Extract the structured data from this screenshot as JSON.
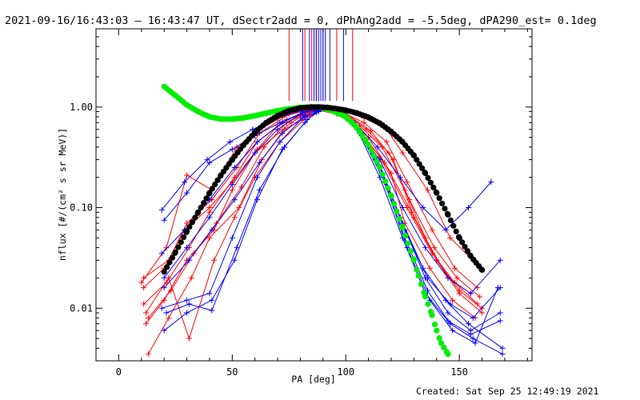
{
  "chart_data": {
    "type": "line",
    "title": "2021-09-16/16:43:03 – 16:43:47 UT, dSectr2add = 0, dPhAng2add = -5.5deg, dPA290_est=  0.1deg",
    "xlabel": "PA [deg]",
    "ylabel": "nflux [#/(cm² s sr MeV)]",
    "xlim": [
      -10,
      182
    ],
    "ylim": [
      0.003,
      6.0
    ],
    "yscale": "log",
    "x_ticks": [
      0,
      50,
      100,
      150
    ],
    "x_tick_labels": [
      "0",
      "50",
      "100",
      "150"
    ],
    "y_ticks": [
      0.01,
      0.1,
      1.0
    ],
    "y_tick_labels": [
      "0.01",
      "0.10",
      "1.00"
    ],
    "grid": false,
    "legend": "none",
    "colors": {
      "red": "#ff0000",
      "blue": "#0000ff",
      "black": "#000000",
      "green": "#00ee00"
    },
    "black_fit": {
      "x": [
        20,
        25,
        30,
        35,
        40,
        45,
        50,
        55,
        60,
        65,
        70,
        75,
        80,
        85,
        88,
        92,
        95,
        100,
        105,
        110,
        115,
        120,
        125,
        130,
        135,
        140,
        145,
        150,
        155,
        160
      ],
      "y": [
        0.023,
        0.036,
        0.058,
        0.09,
        0.14,
        0.21,
        0.3,
        0.42,
        0.56,
        0.7,
        0.82,
        0.92,
        0.98,
        1.0,
        1.0,
        0.99,
        0.97,
        0.93,
        0.87,
        0.79,
        0.69,
        0.57,
        0.45,
        0.33,
        0.22,
        0.14,
        0.085,
        0.05,
        0.033,
        0.024
      ]
    },
    "green_fit": {
      "x": [
        20,
        25,
        30,
        35,
        40,
        45,
        50,
        55,
        60,
        65,
        70,
        75,
        80,
        85,
        88,
        92,
        95,
        100,
        105,
        110,
        115,
        120,
        125,
        130,
        132,
        135,
        138,
        140,
        142,
        145
      ],
      "y": [
        1.6,
        1.3,
        1.05,
        0.9,
        0.8,
        0.76,
        0.76,
        0.78,
        0.82,
        0.87,
        0.92,
        0.96,
        0.99,
        1.0,
        1.0,
        0.95,
        0.9,
        0.8,
        0.62,
        0.42,
        0.25,
        0.13,
        0.063,
        0.03,
        0.021,
        0.013,
        0.0085,
        0.006,
        0.0045,
        0.0035
      ]
    },
    "red_series": [
      {
        "x": [
          11,
          22,
          30,
          41,
          52,
          62,
          75,
          85,
          90,
          98,
          108,
          118,
          127,
          138,
          148,
          158
        ],
        "y": [
          0.02,
          0.03,
          0.07,
          0.12,
          0.25,
          0.55,
          0.85,
          0.95,
          0.98,
          0.9,
          0.7,
          0.45,
          0.18,
          0.06,
          0.025,
          0.016
        ]
      },
      {
        "x": [
          11,
          21,
          31,
          40,
          51,
          61,
          74,
          86,
          91,
          99,
          109,
          119,
          128,
          139,
          149,
          159
        ],
        "y": [
          0.011,
          0.018,
          0.04,
          0.09,
          0.2,
          0.45,
          0.75,
          0.92,
          0.97,
          0.88,
          0.6,
          0.35,
          0.12,
          0.04,
          0.02,
          0.013
        ]
      },
      {
        "x": [
          12,
          20,
          30,
          42,
          50,
          60,
          76,
          84,
          89,
          97,
          107,
          117,
          129,
          140,
          150,
          160
        ],
        "y": [
          0.007,
          0.012,
          0.03,
          0.06,
          0.15,
          0.35,
          0.7,
          0.9,
          0.96,
          0.85,
          0.55,
          0.28,
          0.09,
          0.03,
          0.015,
          0.01
        ]
      },
      {
        "x": [
          13,
          22,
          32,
          40,
          53,
          63,
          73,
          87,
          92,
          100,
          110,
          120,
          126,
          137,
          147,
          157
        ],
        "y": [
          0.0035,
          0.008,
          0.02,
          0.05,
          0.1,
          0.3,
          0.6,
          0.88,
          0.95,
          0.8,
          0.5,
          0.22,
          0.07,
          0.025,
          0.012,
          0.008
        ]
      },
      {
        "x": [
          10,
          21,
          30,
          41,
          52,
          62,
          72,
          85,
          90,
          98,
          108,
          118,
          125,
          136,
          146,
          156
        ],
        "y": [
          0.018,
          0.04,
          0.21,
          0.15,
          0.4,
          0.6,
          0.8,
          0.96,
          0.99,
          0.92,
          0.78,
          0.6,
          0.35,
          0.15,
          0.05,
          0.03
        ]
      },
      {
        "x": [
          12,
          22,
          31,
          42,
          51,
          60,
          71,
          83,
          88,
          96,
          106,
          116,
          126,
          135,
          145,
          155
        ],
        "y": [
          0.009,
          0.02,
          0.005,
          0.03,
          0.08,
          0.2,
          0.45,
          0.8,
          0.93,
          0.85,
          0.65,
          0.4,
          0.15,
          0.05,
          0.02,
          0.014
        ]
      },
      {
        "x": [
          11,
          20,
          29,
          40,
          50,
          61,
          70,
          82,
          89,
          97,
          105,
          115,
          127,
          138,
          148,
          158
        ],
        "y": [
          0.016,
          0.025,
          0.06,
          0.1,
          0.18,
          0.38,
          0.65,
          0.85,
          0.96,
          0.87,
          0.62,
          0.32,
          0.1,
          0.035,
          0.018,
          0.011
        ]
      },
      {
        "x": [
          13,
          23,
          33,
          43,
          54,
          64,
          74,
          84,
          91,
          99,
          111,
          121,
          130,
          140,
          150,
          160
        ],
        "y": [
          0.008,
          0.015,
          0.035,
          0.07,
          0.16,
          0.4,
          0.7,
          0.9,
          0.97,
          0.9,
          0.58,
          0.3,
          0.08,
          0.03,
          0.014,
          0.009
        ]
      }
    ],
    "blue_series": [
      {
        "x": [
          19,
          29,
          39,
          49,
          59,
          70,
          80,
          86,
          90,
          96,
          104,
          114,
          124,
          134,
          144,
          154,
          164
        ],
        "y": [
          0.095,
          0.18,
          0.3,
          0.45,
          0.6,
          0.78,
          0.92,
          0.97,
          0.99,
          0.92,
          0.7,
          0.4,
          0.2,
          0.1,
          0.06,
          0.1,
          0.18
        ]
      },
      {
        "x": [
          20,
          30,
          40,
          50,
          60,
          71,
          81,
          87,
          91,
          97,
          105,
          115,
          125,
          135,
          145,
          155,
          168
        ],
        "y": [
          0.075,
          0.14,
          0.28,
          0.38,
          0.52,
          0.7,
          0.88,
          0.95,
          0.98,
          0.9,
          0.6,
          0.3,
          0.1,
          0.04,
          0.02,
          0.014,
          0.03
        ]
      },
      {
        "x": [
          19,
          29,
          40,
          51,
          61,
          72,
          82,
          88,
          92,
          98,
          106,
          116,
          126,
          136,
          146,
          156,
          168
        ],
        "y": [
          0.035,
          0.06,
          0.12,
          0.25,
          0.45,
          0.7,
          0.9,
          0.97,
          0.96,
          0.88,
          0.55,
          0.22,
          0.06,
          0.02,
          0.011,
          0.008,
          0.016
        ]
      },
      {
        "x": [
          20,
          30,
          40,
          50,
          60,
          70,
          80,
          86,
          90,
          96,
          104,
          114,
          124,
          134,
          144,
          154,
          169
        ],
        "y": [
          0.02,
          0.04,
          0.08,
          0.17,
          0.35,
          0.6,
          0.85,
          0.95,
          0.99,
          0.92,
          0.65,
          0.3,
          0.08,
          0.025,
          0.012,
          0.007,
          0.004
        ]
      },
      {
        "x": [
          20,
          31,
          41,
          51,
          62,
          72,
          82,
          87,
          91,
          97,
          105,
          115,
          125,
          135,
          145,
          155,
          168
        ],
        "y": [
          0.016,
          0.03,
          0.06,
          0.12,
          0.28,
          0.55,
          0.82,
          0.93,
          0.98,
          0.9,
          0.6,
          0.25,
          0.07,
          0.02,
          0.009,
          0.006,
          0.009
        ]
      },
      {
        "x": [
          19,
          30,
          40,
          50,
          61,
          71,
          81,
          88,
          92,
          98,
          106,
          116,
          126,
          136,
          146,
          156,
          169
        ],
        "y": [
          0.01,
          0.012,
          0.014,
          0.05,
          0.2,
          0.45,
          0.78,
          0.92,
          0.97,
          0.88,
          0.58,
          0.22,
          0.05,
          0.015,
          0.007,
          0.005,
          0.0035
        ]
      },
      {
        "x": [
          21,
          31,
          41,
          52,
          62,
          73,
          83,
          88,
          92,
          98,
          107,
          117,
          127,
          137,
          147,
          157,
          167
        ],
        "y": [
          0.009,
          0.011,
          0.0095,
          0.04,
          0.15,
          0.4,
          0.75,
          0.9,
          0.96,
          0.86,
          0.52,
          0.18,
          0.04,
          0.012,
          0.006,
          0.0045,
          0.016
        ]
      },
      {
        "x": [
          20,
          30,
          41,
          51,
          61,
          72,
          82,
          87,
          91,
          97,
          105,
          115,
          125,
          135,
          145,
          155,
          168
        ],
        "y": [
          0.006,
          0.009,
          0.012,
          0.03,
          0.12,
          0.38,
          0.7,
          0.9,
          0.97,
          0.9,
          0.6,
          0.2,
          0.05,
          0.014,
          0.0075,
          0.0055,
          0.0075
        ]
      }
    ],
    "top_markers": {
      "red_x": [
        75,
        82,
        85,
        87,
        90,
        96,
        103
      ],
      "blue_x": [
        81,
        84,
        86,
        87,
        88,
        89,
        90,
        91,
        93,
        99
      ],
      "y_bottom": 1.15
    },
    "footer": "Created: Sat Sep 25 12:49:19 2021"
  }
}
